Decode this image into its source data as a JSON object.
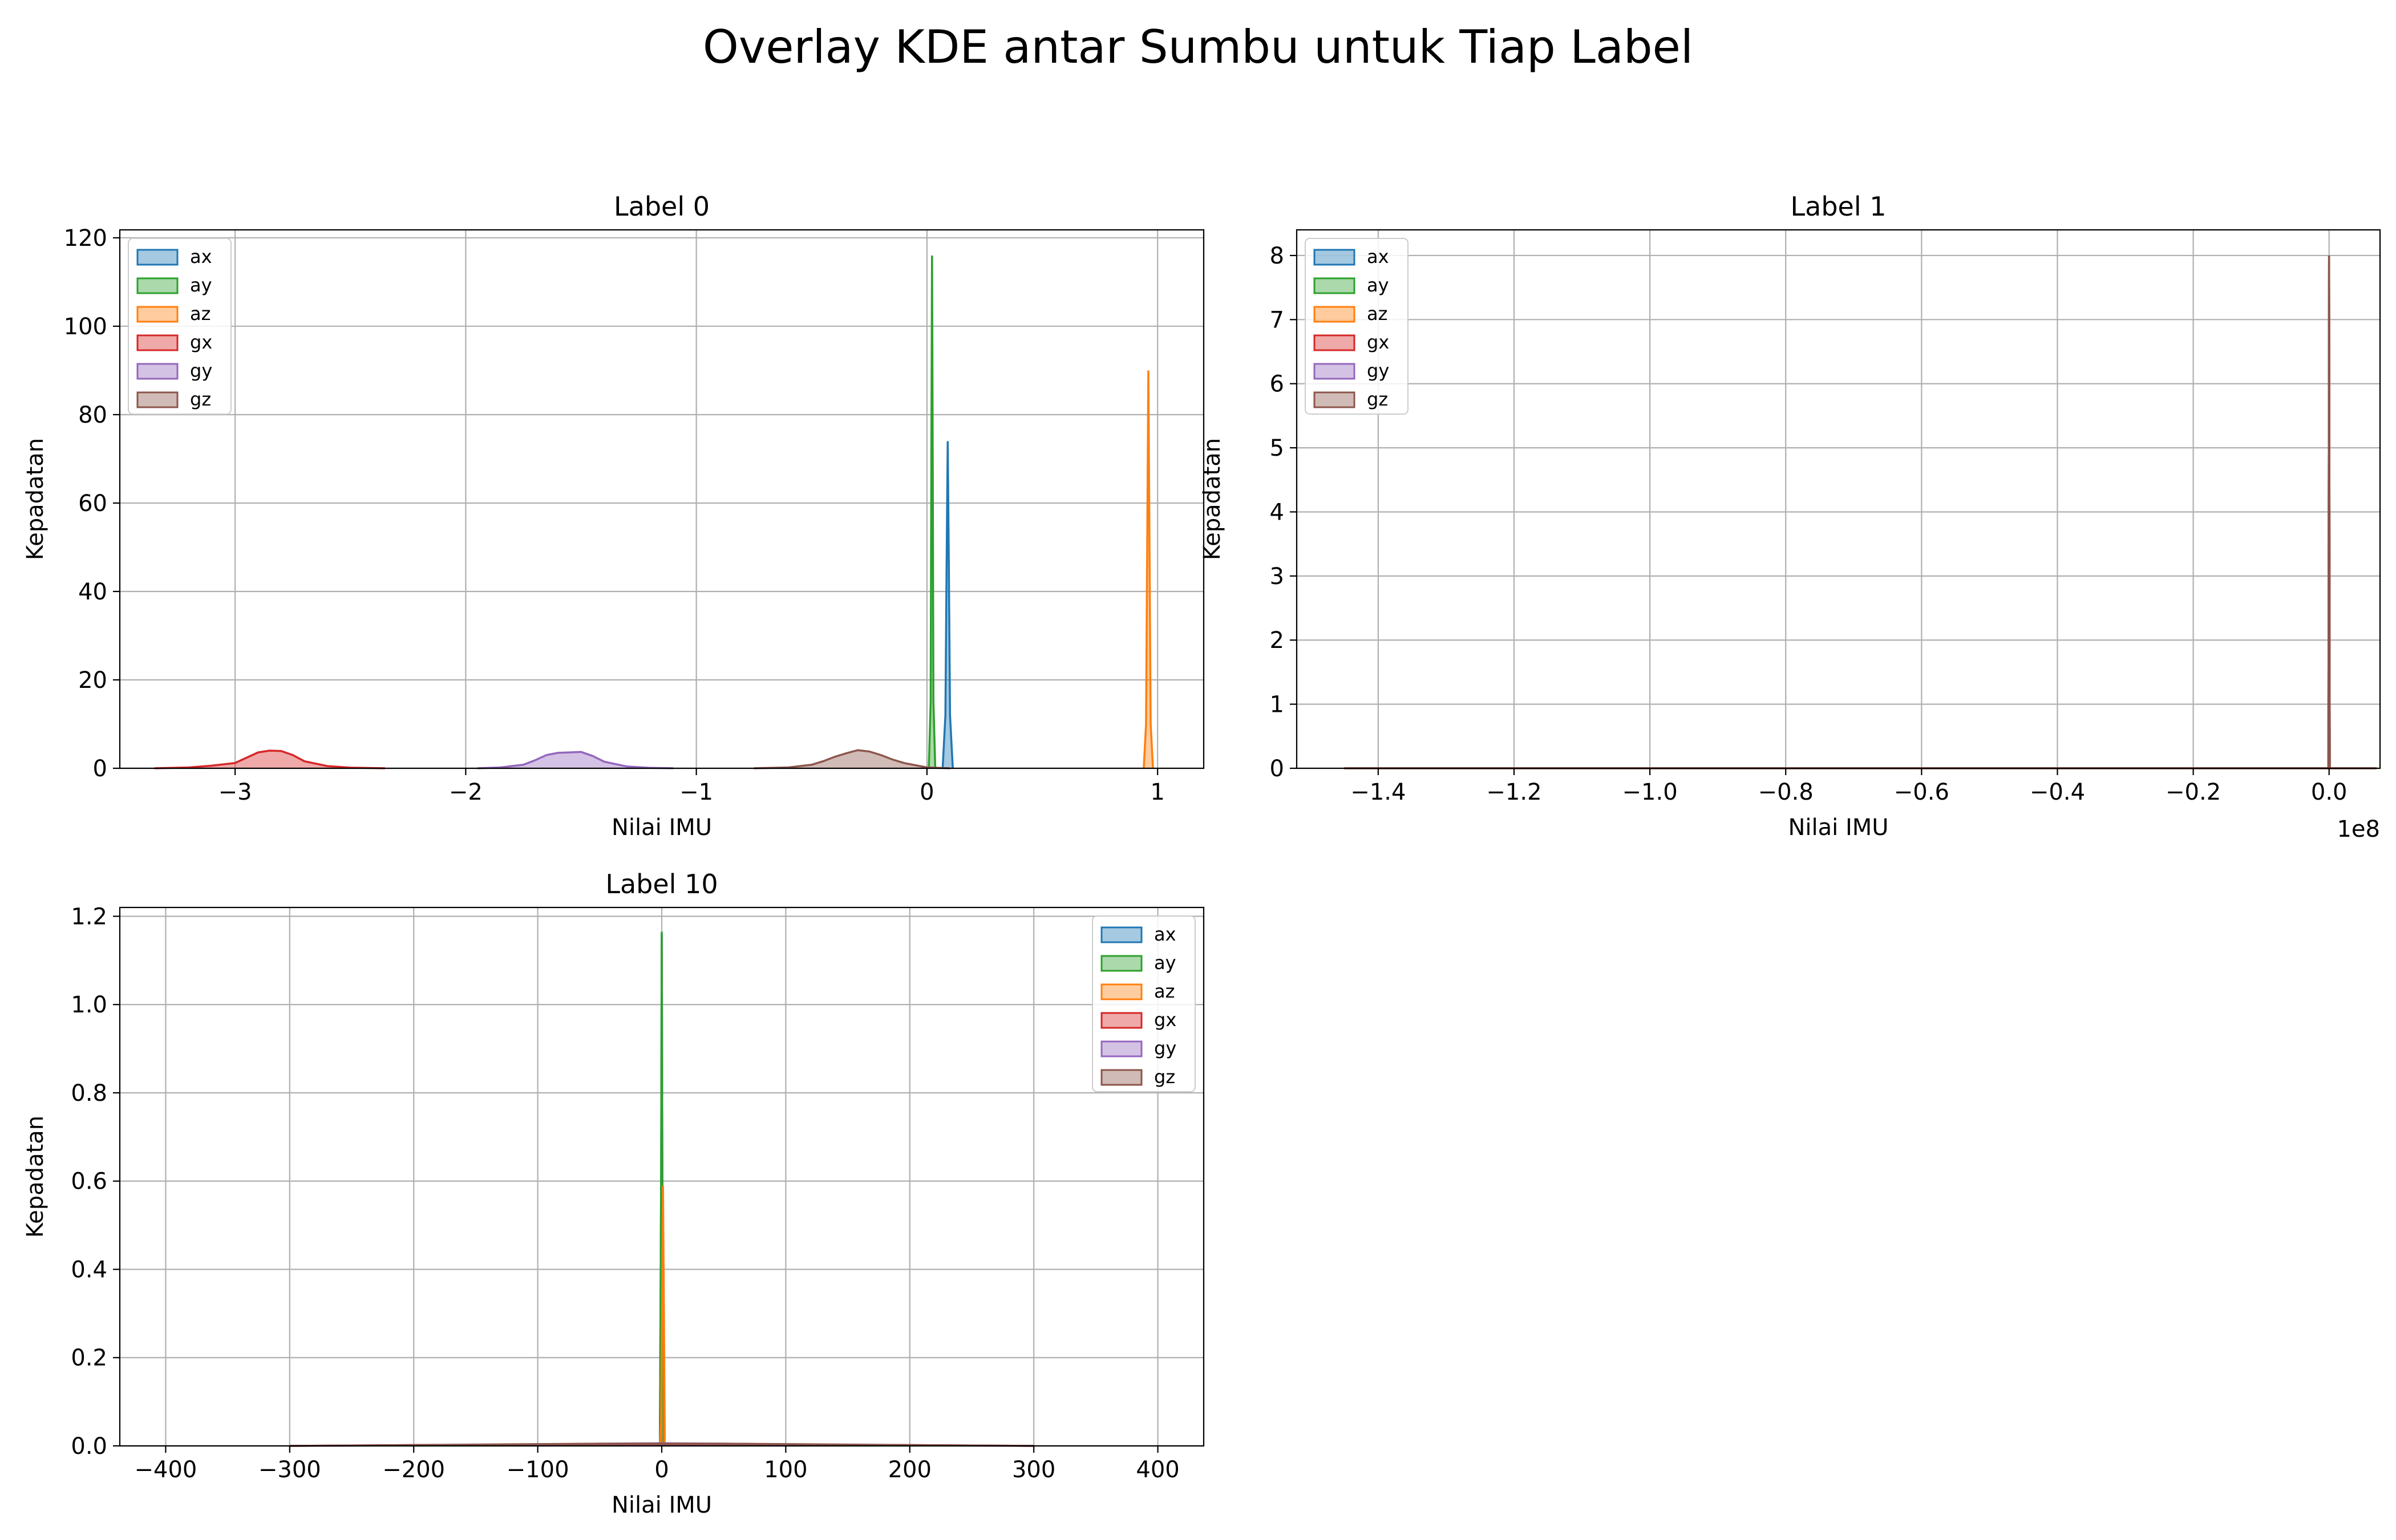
{
  "figure": {
    "title": "Overlay KDE antar Sumbu untuk Tiap Label"
  },
  "series_colors": {
    "ax": "#1f77b4",
    "ay": "#2ca02c",
    "az": "#ff7f0e",
    "gx": "#d62728",
    "gy": "#9467bd",
    "gz": "#8c564b"
  },
  "chart_data": [
    {
      "type": "area",
      "title": "Label 0",
      "xlabel": "Nilai IMU",
      "ylabel": "Kepadatan",
      "xlim": [
        -3.5,
        1.2
      ],
      "ylim": [
        0,
        121.8
      ],
      "xticks": [
        -3,
        -2,
        -1,
        0,
        1
      ],
      "xtick_labels": [
        "−3",
        "−2",
        "−1",
        "0",
        "1"
      ],
      "yticks": [
        0,
        20,
        40,
        60,
        80,
        100,
        120
      ],
      "ytick_labels": [
        "0",
        "20",
        "40",
        "60",
        "80",
        "100",
        "120"
      ],
      "grid": true,
      "legend": "upper left",
      "offset_label": "",
      "series": [
        {
          "name": "ax",
          "x": [
            0.068,
            0.08,
            0.085,
            0.09,
            0.095,
            0.1,
            0.112
          ],
          "y": [
            0,
            12,
            45,
            74,
            45,
            12,
            0
          ]
        },
        {
          "name": "ay",
          "x": [
            0.008,
            0.016,
            0.019,
            0.022,
            0.025,
            0.028,
            0.036
          ],
          "y": [
            0,
            15,
            70,
            116,
            70,
            15,
            0
          ]
        },
        {
          "name": "az",
          "x": [
            0.94,
            0.95,
            0.955,
            0.96,
            0.965,
            0.97,
            0.98
          ],
          "y": [
            0,
            10,
            50,
            90,
            50,
            10,
            0
          ]
        },
        {
          "name": "gx",
          "x": [
            -3.35,
            -3.2,
            -3.1,
            -3.0,
            -2.95,
            -2.9,
            -2.85,
            -2.8,
            -2.75,
            -2.7,
            -2.6,
            -2.5,
            -2.35
          ],
          "y": [
            0,
            0.2,
            0.6,
            1.2,
            2.4,
            3.6,
            4.0,
            3.9,
            3.0,
            1.6,
            0.5,
            0.15,
            0
          ]
        },
        {
          "name": "gy",
          "x": [
            -1.95,
            -1.85,
            -1.75,
            -1.7,
            -1.65,
            -1.6,
            -1.55,
            -1.5,
            -1.45,
            -1.4,
            -1.3,
            -1.2,
            -1.1
          ],
          "y": [
            0,
            0.2,
            0.8,
            1.8,
            3.0,
            3.5,
            3.6,
            3.7,
            2.8,
            1.5,
            0.4,
            0.1,
            0
          ]
        },
        {
          "name": "gz",
          "x": [
            -0.75,
            -0.6,
            -0.5,
            -0.45,
            -0.4,
            -0.35,
            -0.3,
            -0.25,
            -0.2,
            -0.15,
            -0.1,
            0,
            0.1
          ],
          "y": [
            0,
            0.2,
            0.8,
            1.6,
            2.6,
            3.4,
            4.1,
            3.8,
            3.0,
            2.0,
            1.2,
            0.2,
            0
          ]
        }
      ]
    },
    {
      "type": "area",
      "title": "Label 1",
      "xlabel": "Nilai IMU",
      "ylabel": "Kepadatan",
      "xlim": [
        -1.52,
        0.075
      ],
      "ylim": [
        0,
        8.4
      ],
      "xticks": [
        -1.4,
        -1.2,
        -1.0,
        -0.8,
        -0.6,
        -0.4,
        -0.2,
        0.0
      ],
      "xtick_labels": [
        "−1.4",
        "−1.2",
        "−1.0",
        "−0.8",
        "−0.6",
        "−0.4",
        "−0.2",
        "0.0"
      ],
      "yticks": [
        0,
        1,
        2,
        3,
        4,
        5,
        6,
        7,
        8
      ],
      "ytick_labels": [
        "0",
        "1",
        "2",
        "3",
        "4",
        "5",
        "6",
        "7",
        "8"
      ],
      "grid": true,
      "legend": "upper left",
      "offset_label": "1e8",
      "series": [
        {
          "name": "ax",
          "x": [
            -0.001,
            0,
            0.001
          ],
          "y": [
            0,
            8.0,
            0
          ]
        },
        {
          "name": "ay",
          "x": [
            -0.001,
            0,
            0.001
          ],
          "y": [
            0,
            8.0,
            0
          ]
        },
        {
          "name": "az",
          "x": [
            -0.001,
            0,
            0.001
          ],
          "y": [
            0,
            8.0,
            0
          ]
        },
        {
          "name": "gx",
          "x": [
            -1.45,
            -0.001,
            0,
            0.001,
            0.07
          ],
          "y": [
            0,
            0,
            8.0,
            0,
            0
          ]
        },
        {
          "name": "gy",
          "x": [
            -0.001,
            0,
            0.001
          ],
          "y": [
            0,
            8.0,
            0
          ]
        },
        {
          "name": "gz",
          "x": [
            -1.45,
            -0.001,
            0,
            0.001,
            0.07
          ],
          "y": [
            0,
            0,
            8.0,
            0,
            0
          ]
        }
      ]
    },
    {
      "type": "area",
      "title": "Label 10",
      "xlabel": "Nilai IMU",
      "ylabel": "Kepadatan",
      "xlim": [
        -437,
        437
      ],
      "ylim": [
        0,
        1.22
      ],
      "xticks": [
        -400,
        -300,
        -200,
        -100,
        0,
        100,
        200,
        300,
        400
      ],
      "xtick_labels": [
        "−400",
        "−300",
        "−200",
        "−100",
        "0",
        "100",
        "200",
        "300",
        "400"
      ],
      "yticks": [
        0,
        0.2,
        0.4,
        0.6,
        0.8,
        1.0,
        1.2
      ],
      "ytick_labels": [
        "0.0",
        "0.2",
        "0.4",
        "0.6",
        "0.8",
        "1.0",
        "1.2"
      ],
      "grid": true,
      "legend": "upper right",
      "offset_label": "",
      "series": [
        {
          "name": "ax",
          "x": [
            -1.5,
            -0.5,
            0,
            0.5,
            1.5
          ],
          "y": [
            0,
            0.6,
            1.16,
            0.6,
            0
          ]
        },
        {
          "name": "ay",
          "x": [
            -1.5,
            -0.5,
            0,
            0.5,
            1.5
          ],
          "y": [
            0,
            0.6,
            1.165,
            0.6,
            0
          ]
        },
        {
          "name": "az",
          "x": [
            -1.5,
            -0.5,
            0.5,
            1.0,
            1.5,
            2.5
          ],
          "y": [
            0,
            0.05,
            0.4,
            0.59,
            0.4,
            0
          ]
        },
        {
          "name": "gx",
          "x": [
            -300,
            -200,
            -100,
            -50,
            0,
            50,
            100,
            200,
            300
          ],
          "y": [
            0,
            0.002,
            0.003,
            0.004,
            0.004,
            0.004,
            0.003,
            0.002,
            0
          ]
        },
        {
          "name": "gy",
          "x": [
            -300,
            -200,
            -100,
            -50,
            0,
            50,
            100,
            200,
            300
          ],
          "y": [
            0,
            0.0015,
            0.0035,
            0.005,
            0.006,
            0.005,
            0.0035,
            0.0015,
            0
          ]
        },
        {
          "name": "gz",
          "x": [
            -300,
            -200,
            -100,
            -50,
            0,
            50,
            100,
            200,
            300
          ],
          "y": [
            0,
            0.002,
            0.004,
            0.005,
            0.005,
            0.005,
            0.004,
            0.002,
            0
          ]
        }
      ]
    }
  ]
}
